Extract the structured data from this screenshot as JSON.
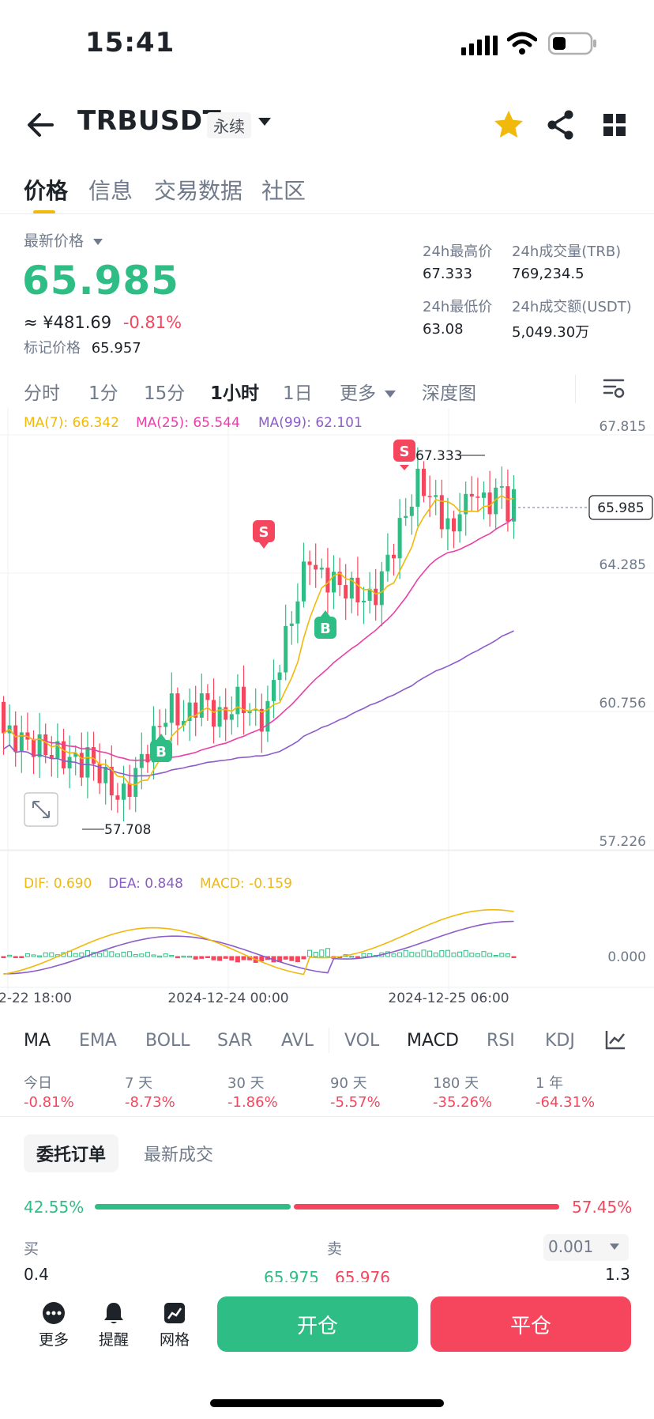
{
  "status_bar": {
    "time": "15:41"
  },
  "header": {
    "symbol": "TRBUSDT",
    "badge": "永续"
  },
  "tabs": [
    {
      "label": "价格",
      "active": true
    },
    {
      "label": "信息",
      "active": false
    },
    {
      "label": "交易数据",
      "active": false
    },
    {
      "label": "社区",
      "active": false
    }
  ],
  "price": {
    "label": "最新价格",
    "last": "65.985",
    "cny": "≈ ¥481.69",
    "change": "-0.81%",
    "mark_label": "标记价格",
    "mark_value": "65.957"
  },
  "stats": {
    "high_label": "24h最高价",
    "high": "67.333",
    "low_label": "24h最低价",
    "low": "63.08",
    "vol_trb_label": "24h成交量(TRB)",
    "vol_trb": "769,234.5",
    "vol_usdt_label": "24h成交额(USDT)",
    "vol_usdt": "5,049.30万"
  },
  "timeframes": [
    "分时",
    "1分",
    "15分",
    "1小时",
    "1日",
    "更多",
    "深度图"
  ],
  "active_timeframe": "1小时",
  "chart_labels": {
    "ma7": "MA(7): 66.342",
    "ma25": "MA(25): 65.544",
    "ma99": "MA(99): 62.101",
    "y_ticks": [
      "67.815",
      "64.285",
      "60.756",
      "57.226"
    ],
    "current_price": "65.985",
    "high_marker": "67.333",
    "low_marker": "57.708",
    "signal_sell": "S",
    "signal_buy": "B",
    "dif": "DIF: 0.690",
    "dea": "DEA: 0.848",
    "macd": "MACD: -0.159",
    "macd_zero": "0.000",
    "x_ticks": [
      "2-22 18:00",
      "2024-12-24 00:00",
      "2024-12-25 06:00"
    ]
  },
  "indicators": [
    {
      "label": "MA",
      "active": true
    },
    {
      "label": "EMA",
      "active": false
    },
    {
      "label": "BOLL",
      "active": false
    },
    {
      "label": "SAR",
      "active": false
    },
    {
      "label": "AVL",
      "active": false
    },
    {
      "label": "VOL",
      "active": false
    },
    {
      "label": "MACD",
      "active": true
    },
    {
      "label": "RSI",
      "active": false
    },
    {
      "label": "KDJ",
      "active": false
    }
  ],
  "performance": [
    {
      "label": "今日",
      "value": "-0.81%"
    },
    {
      "label": "7 天",
      "value": "-8.73%"
    },
    {
      "label": "30 天",
      "value": "-1.86%"
    },
    {
      "label": "90 天",
      "value": "-5.57%"
    },
    {
      "label": "180 天",
      "value": "-35.26%"
    },
    {
      "label": "1 年",
      "value": "-64.31%"
    }
  ],
  "orders": {
    "tab_active": "委托订单",
    "tab_trades": "最新成交",
    "buy_pct": "42.55%",
    "sell_pct": "57.45%",
    "buy_ratio": 0.4255,
    "buy_label": "买",
    "sell_label": "卖",
    "precision": "0.001",
    "bid_qty": "0.4",
    "bid_price": "65.975",
    "ask_price": "65.976",
    "ask_qty": "1.3"
  },
  "bottom_bar": {
    "more": "更多",
    "alert": "提醒",
    "grid": "网格",
    "open": "开仓",
    "close": "平仓"
  },
  "colors": {
    "up": "#2ebd85",
    "down": "#f6465d",
    "ma7": "#f0b90b",
    "ma25": "#e93fa6",
    "ma99": "#8c5cc9",
    "accent": "#f0b90b"
  },
  "icons": [
    "back-arrow-icon",
    "caret-down-icon",
    "star-icon",
    "share-icon",
    "grid-icon",
    "chart-settings-icon",
    "expand-icon",
    "indicator-settings-icon",
    "more-dots-icon",
    "bell-icon",
    "grid-bot-icon"
  ]
}
